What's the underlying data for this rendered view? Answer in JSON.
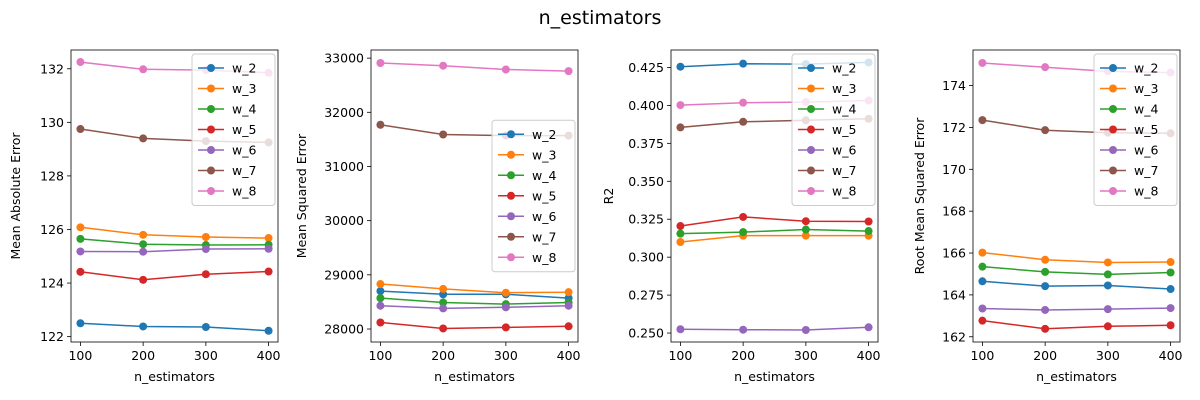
{
  "suptitle": "n_estimators",
  "colors": {
    "w_2": "#1f77b4",
    "w_3": "#ff7f0e",
    "w_4": "#2ca02c",
    "w_5": "#d62728",
    "w_6": "#9467bd",
    "w_7": "#8c564b",
    "w_8": "#e377c2"
  },
  "chart_data": [
    {
      "type": "line",
      "xlabel": "n_estimators",
      "ylabel": "Mean Absolute Error",
      "x": [
        100,
        200,
        300,
        400
      ],
      "xticks": [
        100,
        200,
        300,
        400
      ],
      "ylim": [
        121.8,
        132.7
      ],
      "yticks": [
        122,
        124,
        126,
        128,
        130,
        132
      ],
      "legend_location": "upper-right",
      "series": [
        {
          "name": "w_2",
          "values": [
            122.5,
            122.38,
            122.36,
            122.22
          ]
        },
        {
          "name": "w_3",
          "values": [
            126.08,
            125.8,
            125.72,
            125.68
          ]
        },
        {
          "name": "w_4",
          "values": [
            125.65,
            125.45,
            125.42,
            125.43
          ]
        },
        {
          "name": "w_5",
          "values": [
            124.42,
            124.12,
            124.33,
            124.43
          ]
        },
        {
          "name": "w_6",
          "values": [
            125.18,
            125.17,
            125.27,
            125.28
          ]
        },
        {
          "name": "w_7",
          "values": [
            129.75,
            129.4,
            129.3,
            129.25
          ]
        },
        {
          "name": "w_8",
          "values": [
            132.25,
            131.98,
            131.95,
            131.85
          ]
        }
      ]
    },
    {
      "type": "line",
      "xlabel": "n_estimators",
      "ylabel": "Mean Squared Error",
      "x": [
        100,
        200,
        300,
        400
      ],
      "xticks": [
        100,
        200,
        300,
        400
      ],
      "ylim": [
        27760,
        33150
      ],
      "yticks": [
        28000,
        29000,
        30000,
        31000,
        32000,
        33000
      ],
      "legend_location": "center-right",
      "series": [
        {
          "name": "w_2",
          "values": [
            28700,
            28640,
            28640,
            28570
          ]
        },
        {
          "name": "w_3",
          "values": [
            28830,
            28740,
            28670,
            28680
          ]
        },
        {
          "name": "w_4",
          "values": [
            28570,
            28490,
            28460,
            28490
          ]
        },
        {
          "name": "w_5",
          "values": [
            28120,
            28010,
            28030,
            28050
          ]
        },
        {
          "name": "w_6",
          "values": [
            28430,
            28380,
            28400,
            28430
          ]
        },
        {
          "name": "w_7",
          "values": [
            31770,
            31590,
            31570,
            31570
          ]
        },
        {
          "name": "w_8",
          "values": [
            32910,
            32860,
            32790,
            32760
          ]
        }
      ]
    },
    {
      "type": "line",
      "xlabel": "n_estimators",
      "ylabel": "R2",
      "x": [
        100,
        200,
        300,
        400
      ],
      "xticks": [
        100,
        200,
        300,
        400
      ],
      "ylim": [
        0.2441,
        0.4365
      ],
      "yticks": [
        0.25,
        0.275,
        0.3,
        0.325,
        0.35,
        0.375,
        0.4,
        0.425
      ],
      "ytick_labels": [
        "0.250",
        "0.275",
        "0.300",
        "0.325",
        "0.350",
        "0.375",
        "0.400",
        "0.425"
      ],
      "legend_location": "upper-right",
      "series": [
        {
          "name": "w_2",
          "values": [
            0.4255,
            0.4275,
            0.4272,
            0.4283
          ]
        },
        {
          "name": "w_3",
          "values": [
            0.31,
            0.3142,
            0.3142,
            0.3142
          ]
        },
        {
          "name": "w_4",
          "values": [
            0.3155,
            0.3165,
            0.3182,
            0.3172
          ]
        },
        {
          "name": "w_5",
          "values": [
            0.3205,
            0.3265,
            0.3237,
            0.3235
          ]
        },
        {
          "name": "w_6",
          "values": [
            0.2525,
            0.2522,
            0.252,
            0.2538
          ]
        },
        {
          "name": "w_7",
          "values": [
            0.3855,
            0.3892,
            0.3902,
            0.3912
          ]
        },
        {
          "name": "w_8",
          "values": [
            0.4002,
            0.4018,
            0.4022,
            0.4032
          ]
        }
      ]
    },
    {
      "type": "line",
      "xlabel": "n_estimators",
      "ylabel": "Root Mean Squared Error",
      "x": [
        100,
        200,
        300,
        400
      ],
      "xticks": [
        100,
        200,
        300,
        400
      ],
      "ylim": [
        161.75,
        175.7
      ],
      "yticks": [
        162,
        164,
        166,
        168,
        170,
        172,
        174
      ],
      "legend_location": "upper-right",
      "series": [
        {
          "name": "w_2",
          "values": [
            164.65,
            164.42,
            164.45,
            164.28
          ]
        },
        {
          "name": "w_3",
          "values": [
            166.02,
            165.68,
            165.55,
            165.57
          ]
        },
        {
          "name": "w_4",
          "values": [
            165.35,
            165.1,
            164.98,
            165.07
          ]
        },
        {
          "name": "w_5",
          "values": [
            162.77,
            162.38,
            162.5,
            162.55
          ]
        },
        {
          "name": "w_6",
          "values": [
            163.35,
            163.28,
            163.32,
            163.37
          ]
        },
        {
          "name": "w_7",
          "values": [
            172.35,
            171.87,
            171.75,
            171.72
          ]
        },
        {
          "name": "w_8",
          "values": [
            175.08,
            174.88,
            174.68,
            174.62
          ]
        }
      ]
    }
  ]
}
